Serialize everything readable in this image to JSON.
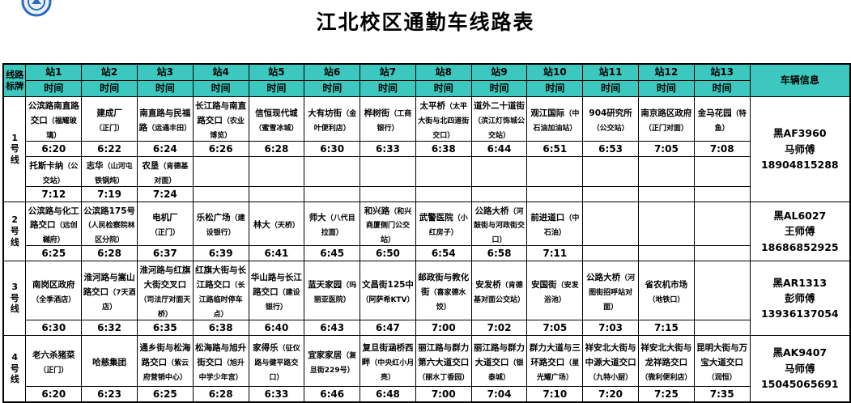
{
  "title": "江北校区通勤车线路表",
  "logo": {
    "name": "campus-badge",
    "ring_color": "#2b6cb8",
    "fill_color": "#e8f0fb"
  },
  "colors": {
    "header_teal": "#3cc8bf",
    "time_red": "#ff0000",
    "border": "#000000"
  },
  "table": {
    "corner_label": "线路标牌",
    "time_label": "时间",
    "vehicle_header": "车辆信息",
    "station_headers": [
      "站1",
      "站2",
      "站3",
      "站4",
      "站5",
      "站6",
      "站7",
      "站8",
      "站9",
      "站10",
      "站11",
      "站12",
      "站13"
    ]
  },
  "routes": [
    {
      "name": "1号线",
      "vehicle": [
        "黑AF3960",
        "马师傅",
        "18904815288"
      ],
      "schedules": [
        {
          "stops": [
            {
              "name": "公滨路南直路交口",
              "note": "（福耀玻璃）",
              "time": "6:20"
            },
            {
              "name": "建成厂",
              "note": "（正门）",
              "time": "6:22"
            },
            {
              "name": "南直路与民福路",
              "note": "（运通丰田）",
              "time": "6:24"
            },
            {
              "name": "长江路与南直路交口",
              "note": "（农业博览）",
              "time": "6:26"
            },
            {
              "name": "信恒现代城",
              "note": "（蜜雪冰城）",
              "time": "6:28"
            },
            {
              "name": "大有坊街",
              "note": "（金叶便利店）",
              "time": "6:30"
            },
            {
              "name": "桦树街",
              "note": "（工商银行）",
              "time": "6:33"
            },
            {
              "name": "太平桥",
              "note": "（太平大街与北四道街交口）",
              "time": "6:38"
            },
            {
              "name": "道外二十道街",
              "note": "（滨江灯饰城公交站）",
              "time": "6:44"
            },
            {
              "name": "观江国际",
              "note": "（中石油加油站）",
              "time": "6:51"
            },
            {
              "name": "904研究所",
              "note": "（公交站）",
              "time": "6:53"
            },
            {
              "name": "南京路区政府",
              "note": "（正门对面）",
              "time": "7:05"
            },
            {
              "name": "金马花园",
              "note": "（特鱼）",
              "time": "7:08"
            }
          ]
        },
        {
          "stops": [
            {
              "name": "托斯卡纳",
              "note": "（公交站）",
              "time": "7:12"
            },
            {
              "name": "志华",
              "note": "（山河屯铁锅炖）",
              "time": "7:19"
            },
            {
              "name": "农垦",
              "note": "（肯德基对面）",
              "time": "7:24"
            },
            {
              "name": "",
              "note": "",
              "time": ""
            },
            {
              "name": "",
              "note": "",
              "time": ""
            },
            {
              "name": "",
              "note": "",
              "time": ""
            },
            {
              "name": "",
              "note": "",
              "time": ""
            },
            {
              "name": "",
              "note": "",
              "time": ""
            },
            {
              "name": "",
              "note": "",
              "time": ""
            },
            {
              "name": "",
              "note": "",
              "time": ""
            },
            {
              "name": "",
              "note": "",
              "time": ""
            },
            {
              "name": "",
              "note": "",
              "time": ""
            },
            {
              "name": "",
              "note": "",
              "time": ""
            }
          ]
        }
      ]
    },
    {
      "name": "2号线",
      "vehicle": [
        "黑AL6027",
        "王师傅",
        "18686852925"
      ],
      "schedules": [
        {
          "stops": [
            {
              "name": "公滨路与化工路交口",
              "note": "（远创樾府）",
              "time": "6:25"
            },
            {
              "name": "公滨路175号",
              "note": "（人民检察院林区分院）",
              "time": "6:28"
            },
            {
              "name": "电机厂",
              "note": "（正门）",
              "time": "6:37"
            },
            {
              "name": "乐松广场",
              "note": "（建设银行）",
              "time": "6:39"
            },
            {
              "name": "林大",
              "note": "（天桥）",
              "time": "6:41"
            },
            {
              "name": "师大",
              "note": "（八代目拉面）",
              "time": "6:45"
            },
            {
              "name": "和兴路",
              "note": "（和兴商厦侧门公交站）",
              "time": "6:50"
            },
            {
              "name": "武警医院",
              "note": "（小红房子）",
              "time": "6:54"
            },
            {
              "name": "公路大桥",
              "note": "（河鼓街与河政街交口）",
              "time": "6:58"
            },
            {
              "name": "前进道口",
              "note": "（中石油）",
              "time": "7:11"
            },
            {
              "name": "",
              "note": "",
              "time": ""
            },
            {
              "name": "",
              "note": "",
              "time": ""
            },
            {
              "name": "",
              "note": "",
              "time": ""
            }
          ]
        }
      ]
    },
    {
      "name": "3号线",
      "vehicle": [
        "黑AR1313",
        "彭师傅",
        "13936137054"
      ],
      "schedules": [
        {
          "stops": [
            {
              "name": "南岗区政府",
              "note": "（全季酒店）",
              "time": "6:30"
            },
            {
              "name": "淮河路与嵩山路交口",
              "note": "（7天酒店）",
              "time": "6:32"
            },
            {
              "name": "淮河路与红旗大街交叉口",
              "note": "（司法厅对面天桥）",
              "time": "6:35"
            },
            {
              "name": "红旗大街与长江路交口",
              "note": "（长江路临时停车点）",
              "time": "6:38"
            },
            {
              "name": "华山路与长江路交口",
              "note": "（建设银行）",
              "time": "6:40"
            },
            {
              "name": "蓝天家园",
              "note": "（玛丽亚医院）",
              "time": "6:43"
            },
            {
              "name": "文昌街125中",
              "note": "（阿萨希KTV）",
              "time": "6:47"
            },
            {
              "name": "邮政街与教化街",
              "note": "（喜家德水饺）",
              "time": "7:00"
            },
            {
              "name": "安发桥",
              "note": "（肯德基对面公交站）",
              "time": "7:02"
            },
            {
              "name": "安国街",
              "note": "（安发浴池）",
              "time": "7:05"
            },
            {
              "name": "公路大桥",
              "note": "（河图街招呼站对面）",
              "time": "7:03"
            },
            {
              "name": "省农机市场",
              "note": "（地铁口）",
              "time": "7:15"
            },
            {
              "name": "",
              "note": "",
              "time": ""
            }
          ]
        }
      ]
    },
    {
      "name": "4号线",
      "vehicle": [
        "黑AK9407",
        "马师傅",
        "15045065691"
      ],
      "schedules": [
        {
          "stops": [
            {
              "name": "老六杀猪菜",
              "note": "（正门）",
              "time": "6:20"
            },
            {
              "name": "哈慈集团",
              "note": "",
              "time": "6:23"
            },
            {
              "name": "通乡街与松海路交口",
              "note": "（紫云府营销中心）",
              "time": "6:25"
            },
            {
              "name": "松海路与旭升街交口",
              "note": "（旭升中学少年宫）",
              "time": "6:28"
            },
            {
              "name": "家得乐",
              "note": "（征仪路与健平路交口）",
              "time": "6:33"
            },
            {
              "name": "宜家家居",
              "note": "（复旦街229号）",
              "time": "6:46"
            },
            {
              "name": "复旦街涵桥西畔",
              "note": "（中央红小月亮）",
              "time": "6:48"
            },
            {
              "name": "丽江路与群力第六大道交口",
              "note": "（丽水丁香园）",
              "time": "7:00"
            },
            {
              "name": "丽江路与群力大道交口",
              "note": "（银泰城）",
              "time": "7:04"
            },
            {
              "name": "群力大道与三环路交口",
              "note": "（星光耀广场）",
              "time": "7:10"
            },
            {
              "name": "祥安北大街与中源大道交口",
              "note": "（九特小厨）",
              "time": "7:20"
            },
            {
              "name": "祥安北大街与龙祥路交口",
              "note": "（微利便利店）",
              "time": "7:25"
            },
            {
              "name": "昆明大街与万宝大道交口",
              "note": "（润恒）",
              "time": "7:35"
            }
          ]
        }
      ]
    }
  ]
}
